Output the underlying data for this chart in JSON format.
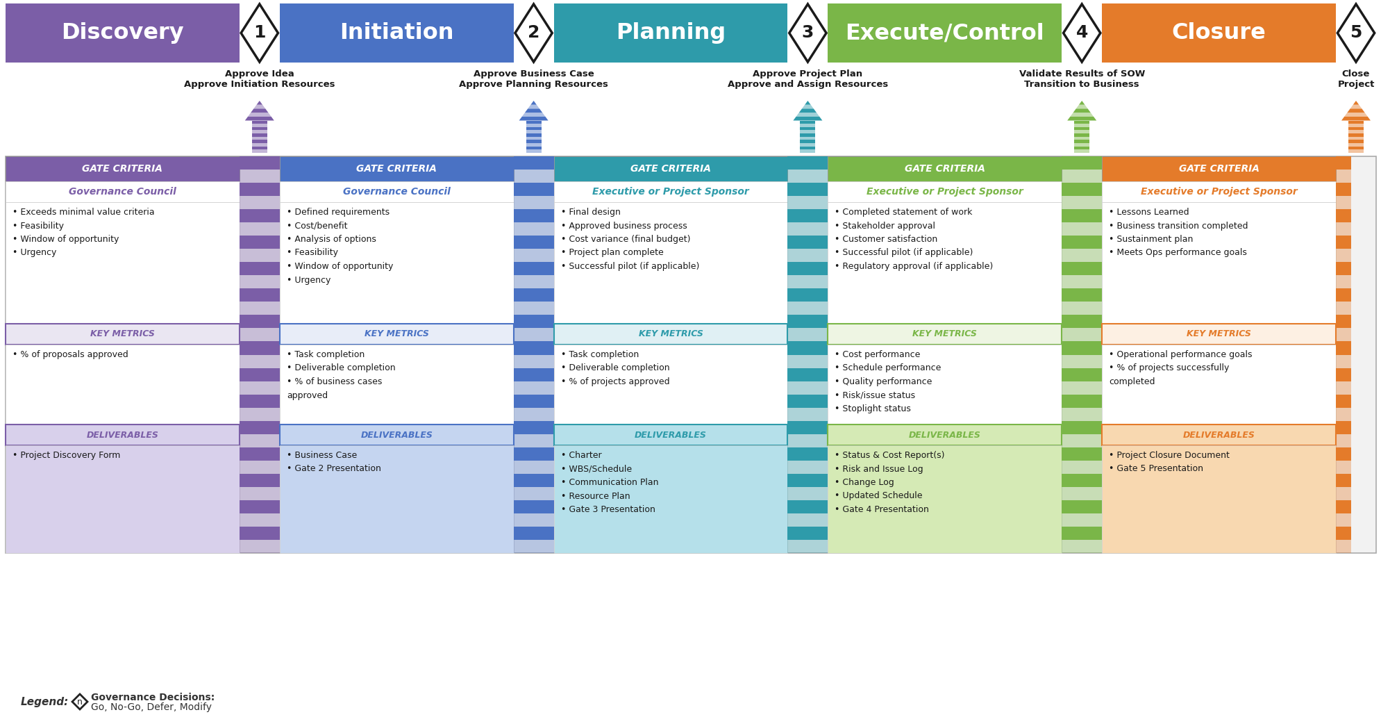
{
  "stages": [
    {
      "name": "Discovery",
      "color": "#7B5EA7",
      "text_color": "#FFFFFF"
    },
    {
      "name": "Initiation",
      "color": "#4A72C4",
      "text_color": "#FFFFFF"
    },
    {
      "name": "Planning",
      "color": "#2E9BAA",
      "text_color": "#FFFFFF"
    },
    {
      "name": "Execute/Control",
      "color": "#7AB648",
      "text_color": "#FFFFFF"
    },
    {
      "name": "Closure",
      "color": "#E47B2A",
      "text_color": "#FFFFFF"
    }
  ],
  "gate_numbers": [
    "1",
    "2",
    "3",
    "4",
    "5"
  ],
  "gate_labels": [
    "Approve Idea\nApprove Initiation Resources",
    "Approve Business Case\nApprove Planning Resources",
    "Approve Project Plan\nApprove and Assign Resources",
    "Validate Results of SOW\nTransition to Business",
    "Close\nProject"
  ],
  "arrow_colors": [
    "#7B5EA7",
    "#4A72C4",
    "#2E9BAA",
    "#7AB648",
    "#E47B2A"
  ],
  "gate_criteria_colors": [
    "#7B5EA7",
    "#4A72C4",
    "#2E9BAA",
    "#7AB648",
    "#E47B2A"
  ],
  "separator_colors": [
    "#7B5EA7",
    "#4A72C4",
    "#2E9BAA",
    "#7AB648",
    "#E47B2A"
  ],
  "section_headers": [
    "Governance Council",
    "Governance Council",
    "Executive or Project Sponsor",
    "Executive or Project Sponsor",
    "Executive or Project Sponsor"
  ],
  "section_header_colors": [
    "#7B5EA7",
    "#4A72C4",
    "#2E9BAA",
    "#7AB648",
    "#E47B2A"
  ],
  "gate_criteria_items": [
    [
      "Exceeds minimal value criteria",
      "Feasibility",
      "Window of opportunity",
      "Urgency"
    ],
    [
      "Defined requirements",
      "Cost/benefit",
      "Analysis of options",
      "Feasibility",
      "Window of opportunity",
      "Urgency"
    ],
    [
      "Final design",
      "Approved business process",
      "Cost variance (final budget)",
      "Project plan complete",
      "Successful pilot (if applicable)"
    ],
    [
      "Completed statement of work",
      "Stakeholder approval",
      "Customer satisfaction",
      "Successful pilot (if applicable)",
      "Regulatory approval (if applicable)"
    ],
    [
      "Lessons Learned",
      "Business transition completed",
      "Sustainment plan",
      "Meets Ops performance goals"
    ]
  ],
  "key_metrics_colors": [
    "#7B5EA7",
    "#4A72C4",
    "#2E9BAA",
    "#7AB648",
    "#E47B2A"
  ],
  "key_metrics_bg_colors": [
    "#EAE6F2",
    "#E8EDF8",
    "#E0F0F4",
    "#EEF5E3",
    "#FDF0E3"
  ],
  "key_metrics_items": [
    [
      "% of proposals approved"
    ],
    [
      "Task completion",
      "Deliverable completion",
      "% of business cases\napproved"
    ],
    [
      "Task completion",
      "Deliverable completion",
      "% of projects approved"
    ],
    [
      "Cost performance",
      "Schedule performance",
      "Quality performance",
      "Risk/issue status",
      "Stoplight status"
    ],
    [
      "Operational performance goals",
      "% of projects successfully\ncompleted"
    ]
  ],
  "deliverables_colors": [
    "#7B5EA7",
    "#4A72C4",
    "#2E9BAA",
    "#7AB648",
    "#E47B2A"
  ],
  "deliverables_bg_colors": [
    "#D8D0EB",
    "#C5D5F0",
    "#B5E0EA",
    "#D5EAB5",
    "#F8D8B0"
  ],
  "deliverables_items": [
    [
      "Project Discovery Form"
    ],
    [
      "Business Case",
      "Gate 2 Presentation"
    ],
    [
      "Charter",
      "WBS/Schedule",
      "Communication Plan",
      "Resource Plan",
      "Gate 3 Presentation"
    ],
    [
      "Status & Cost Report(s)",
      "Risk and Issue Log",
      "Change Log",
      "Updated Schedule",
      "Gate 4 Presentation"
    ],
    [
      "Project Closure Document",
      "Gate 5 Presentation"
    ]
  ],
  "bg_color": "#FFFFFF"
}
